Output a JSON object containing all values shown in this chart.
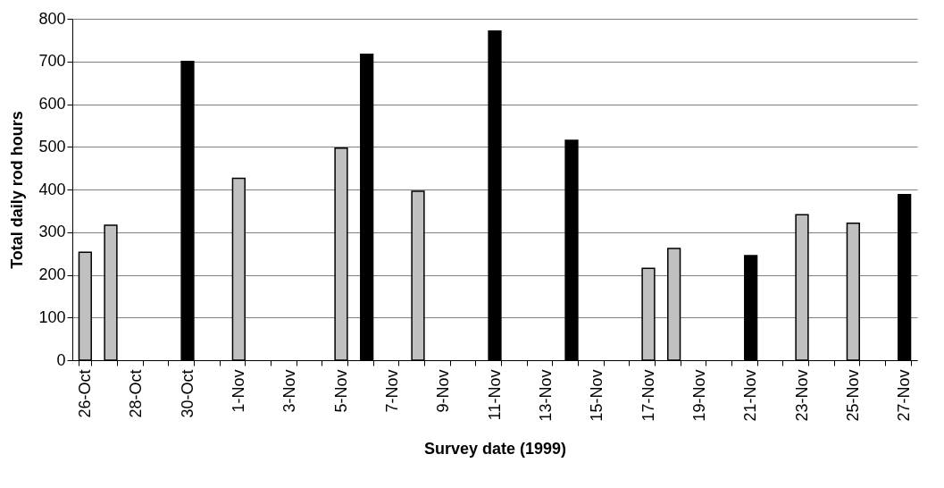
{
  "chart_data": {
    "type": "bar",
    "xlabel": "Survey date (1999)",
    "ylabel": "Total daily rod hours",
    "categories": [
      "26-Oct",
      null,
      "28-Oct",
      null,
      "30-Oct",
      null,
      "1-Nov",
      null,
      "3-Nov",
      null,
      "5-Nov",
      null,
      "7-Nov",
      null,
      "9-Nov",
      null,
      "11-Nov",
      null,
      "13-Nov",
      null,
      "15-Nov",
      null,
      "17-Nov",
      null,
      "19-Nov",
      null,
      "21-Nov",
      null,
      "23-Nov",
      null,
      "25-Nov",
      null,
      "27-Nov"
    ],
    "values": [
      253,
      316,
      null,
      null,
      700,
      null,
      426,
      null,
      null,
      null,
      497,
      717,
      null,
      396,
      null,
      null,
      771,
      null,
      null,
      515,
      null,
      null,
      215,
      262,
      null,
      null,
      245,
      null,
      341,
      null,
      321,
      null,
      388
    ],
    "colors": [
      "#c0c0c0",
      "#c0c0c0",
      null,
      null,
      "#000000",
      null,
      "#c0c0c0",
      null,
      null,
      null,
      "#c0c0c0",
      "#000000",
      null,
      "#c0c0c0",
      null,
      null,
      "#000000",
      null,
      null,
      "#000000",
      null,
      null,
      "#c0c0c0",
      "#c0c0c0",
      null,
      null,
      "#000000",
      null,
      "#c0c0c0",
      null,
      "#c0c0c0",
      null,
      "#000000"
    ],
    "ylim": [
      0,
      800
    ],
    "yticks": [
      0,
      100,
      200,
      300,
      400,
      500,
      600,
      700,
      800
    ],
    "grid": "y"
  }
}
